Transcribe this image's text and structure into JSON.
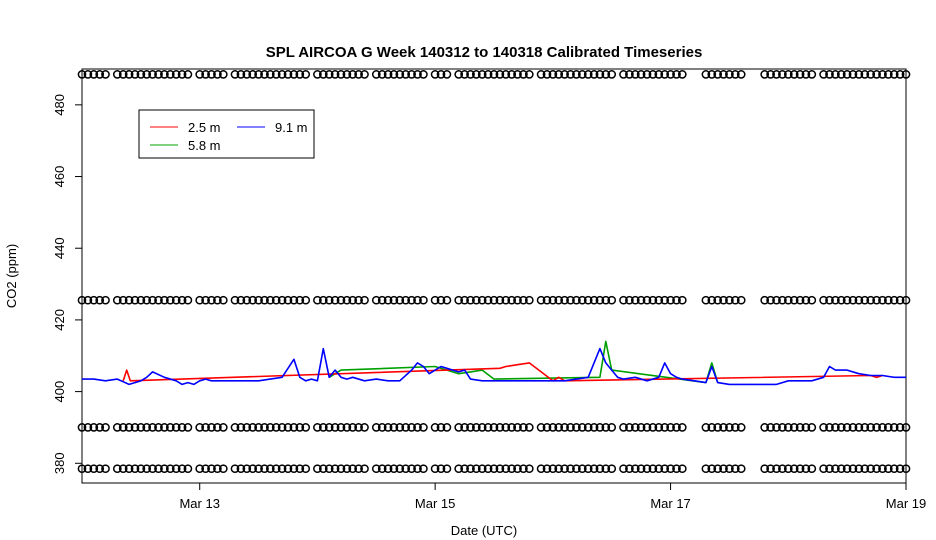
{
  "chart_data": {
    "type": "line",
    "title": "SPL AIRCOA G  Week 140312 to 140318  Calibrated Timeseries",
    "xlabel": "Date (UTC)",
    "ylabel": "CO2 (ppm)",
    "xlim": [
      12.0,
      19.0
    ],
    "ylim": [
      374.5,
      490
    ],
    "x_ticks": [
      {
        "value": 13,
        "label": "Mar 13"
      },
      {
        "value": 15,
        "label": "Mar 15"
      },
      {
        "value": 17,
        "label": "Mar 17"
      },
      {
        "value": 19,
        "label": "Mar 19"
      }
    ],
    "y_ticks": [
      {
        "value": 380,
        "label": "380"
      },
      {
        "value": 400,
        "label": "400"
      },
      {
        "value": 420,
        "label": "420"
      },
      {
        "value": 440,
        "label": "440"
      },
      {
        "value": 460,
        "label": "460"
      },
      {
        "value": 480,
        "label": "480"
      }
    ],
    "legend": {
      "position": "top-left",
      "entries": [
        {
          "name": "2.5 m",
          "color": "#ff0000"
        },
        {
          "name": "5.8 m",
          "color": "#00a000"
        },
        {
          "name": "9.1 m",
          "color": "#0000ff"
        }
      ]
    },
    "grid": false,
    "series": [
      {
        "name": "9.1 m",
        "color": "#0000ff",
        "x": [
          12.0,
          12.1,
          12.2,
          12.3,
          12.4,
          12.5,
          12.55,
          12.6,
          12.7,
          12.8,
          12.85,
          12.9,
          12.95,
          13.0,
          13.05,
          13.1,
          13.2,
          13.3,
          13.4,
          13.5,
          13.6,
          13.7,
          13.8,
          13.85,
          13.9,
          13.95,
          14.0,
          14.05,
          14.1,
          14.15,
          14.2,
          14.25,
          14.3,
          14.4,
          14.5,
          14.6,
          14.7,
          14.8,
          14.85,
          14.9,
          14.95,
          15.0,
          15.05,
          15.1,
          15.15,
          15.2,
          15.25,
          15.3,
          15.4,
          15.5,
          15.6,
          15.7,
          15.8,
          15.9,
          16.0,
          16.1,
          16.2,
          16.3,
          16.4,
          16.45,
          16.5,
          16.55,
          16.6,
          16.7,
          16.8,
          16.9,
          16.95,
          17.0,
          17.05,
          17.1,
          17.2,
          17.3,
          17.35,
          17.4,
          17.5,
          17.6,
          17.7,
          17.8,
          17.9,
          18.0,
          18.1,
          18.2,
          18.3,
          18.35,
          18.4,
          18.5,
          18.6,
          18.7,
          18.8,
          18.9,
          19.0
        ],
        "y": [
          403.5,
          403.5,
          403,
          403.5,
          402,
          403,
          404,
          405.5,
          404,
          403,
          402,
          402.5,
          402,
          403,
          403.5,
          403,
          403,
          403,
          403,
          403,
          403.5,
          404,
          409,
          404,
          403,
          403.5,
          403,
          412,
          404,
          406,
          404,
          403.5,
          404,
          403,
          403.5,
          403,
          403,
          406,
          408,
          407,
          405,
          406,
          407,
          406.5,
          406,
          405.5,
          406,
          403.5,
          403,
          403,
          403,
          403,
          403,
          403,
          403,
          403,
          403.5,
          404,
          412,
          408,
          406,
          404,
          403.5,
          404,
          403,
          404,
          408,
          405,
          404,
          403.5,
          403,
          402.5,
          407,
          402.5,
          402,
          402,
          402,
          402,
          402,
          403,
          403,
          403,
          404,
          407,
          406,
          406,
          405,
          404.5,
          404.5,
          404,
          404
        ]
      },
      {
        "name": "5.8 m",
        "color": "#00a000",
        "x": [
          14.1,
          14.2,
          15.0,
          15.1,
          15.2,
          15.3,
          15.4,
          15.5,
          16.4,
          16.45,
          16.5,
          17.3,
          17.35,
          17.4
        ],
        "y": [
          404,
          406,
          407,
          406,
          405,
          405.5,
          406,
          403.5,
          404,
          414,
          406,
          402.5,
          408,
          402.5
        ]
      },
      {
        "name": "2.5 m",
        "color": "#ff0000",
        "x": [
          12.35,
          12.38,
          12.41,
          15.55,
          15.6,
          15.7,
          15.8,
          16.0,
          16.05,
          16.1,
          18.7,
          18.75,
          18.8
        ],
        "y": [
          403,
          406,
          403,
          406.5,
          407,
          407.5,
          408,
          403,
          404,
          403,
          404.5,
          404,
          404.5
        ]
      }
    ],
    "calibration_points": {
      "marker": "open-circle",
      "levels": [
        488.5,
        425.5,
        390,
        378.5
      ],
      "segments": [
        [
          12.0,
          12.2
        ],
        [
          12.3,
          12.9
        ],
        [
          13.0,
          13.2
        ],
        [
          13.3,
          13.9
        ],
        [
          14.0,
          14.4
        ],
        [
          14.5,
          14.9
        ],
        [
          15.0,
          15.1
        ],
        [
          15.2,
          15.8
        ],
        [
          15.9,
          16.5
        ],
        [
          16.6,
          17.1
        ],
        [
          17.3,
          17.6
        ],
        [
          17.8,
          18.2
        ],
        [
          18.3,
          19.0
        ]
      ]
    }
  }
}
